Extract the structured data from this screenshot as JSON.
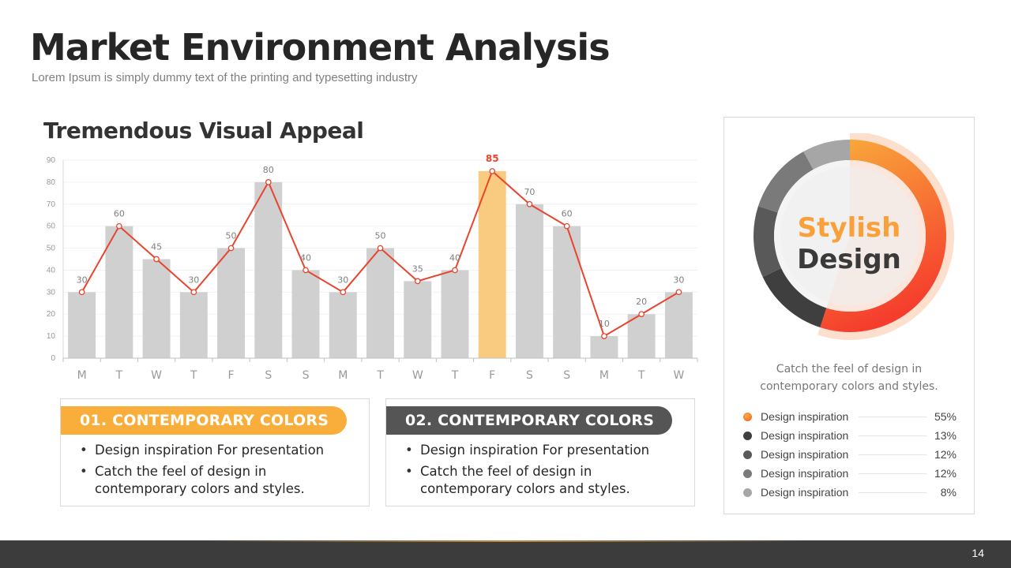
{
  "header": {
    "title": "Market Environment Analysis",
    "subtitle": "Lorem Ipsum is simply dummy  text of the printing  and typesetting  industry"
  },
  "chart_title": "Tremendous Visual Appeal",
  "chart_data": {
    "type": "bar",
    "categories": [
      "M",
      "T",
      "W",
      "T",
      "F",
      "S",
      "S",
      "M",
      "T",
      "W",
      "T",
      "F",
      "S",
      "S",
      "M",
      "T",
      "W"
    ],
    "values": [
      30,
      60,
      45,
      30,
      50,
      80,
      40,
      30,
      50,
      35,
      40,
      85,
      70,
      60,
      10,
      20,
      30
    ],
    "highlight_index": 11,
    "overlay_line": true,
    "ylim": [
      0,
      90
    ],
    "yticks": [
      0,
      10,
      20,
      30,
      40,
      50,
      60,
      70,
      80,
      90
    ],
    "grid": true,
    "colors": {
      "bar": "#d0d0d0",
      "bar_highlight": "#f9cb80",
      "line": "#e8442e",
      "label": "#7f7f7f",
      "label_highlight": "#e8442e"
    }
  },
  "cards": [
    {
      "heading": "01. CONTEMPORARY COLORS",
      "bullets": [
        "Design inspiration For presentation",
        "Catch the feel of design in contemporary colors and styles."
      ]
    },
    {
      "heading": "02. CONTEMPORARY COLORS",
      "bullets": [
        "Design inspiration For presentation",
        "Catch the feel of design in contemporary colors and styles."
      ]
    }
  ],
  "donut": {
    "center_word1": "Stylish",
    "center_word2": "Design",
    "caption": "Catch the feel of design in contemporary colors and styles.",
    "segments": [
      {
        "label": "Design inspiration",
        "value": 55,
        "display": "55%",
        "color": "#f7932a"
      },
      {
        "label": "Design inspiration",
        "value": 13,
        "display": "13%",
        "color": "#3f3f3f"
      },
      {
        "label": "Design inspiration",
        "value": 12,
        "display": "12%",
        "color": "#595959"
      },
      {
        "label": "Design inspiration",
        "value": 12,
        "display": "12%",
        "color": "#7a7a7a"
      },
      {
        "label": "Design inspiration",
        "value": 8,
        "display": "8%",
        "color": "#a6a6a6"
      }
    ]
  },
  "footer": {
    "page_number": "14"
  }
}
